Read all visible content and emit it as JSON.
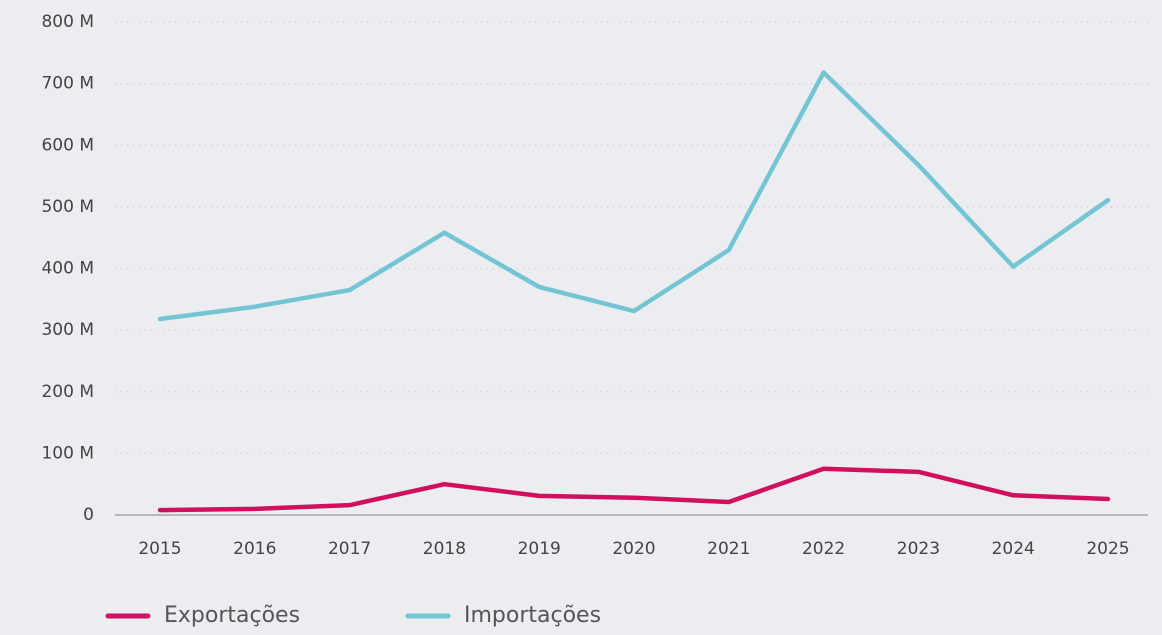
{
  "chart_data": {
    "type": "line",
    "categories": [
      "2015",
      "2016",
      "2017",
      "2018",
      "2019",
      "2020",
      "2021",
      "2022",
      "2023",
      "2024",
      "2025"
    ],
    "series": [
      {
        "name": "Exportações",
        "color": "#d0105f",
        "values": [
          8000000,
          10000000,
          16000000,
          50000000,
          31000000,
          28000000,
          21000000,
          75000000,
          70000000,
          32000000,
          26000000
        ]
      },
      {
        "name": "Importações",
        "color": "#74c5d3",
        "values": [
          318000000,
          338000000,
          365000000,
          458000000,
          370000000,
          331000000,
          430000000,
          718000000,
          568000000,
          403000000,
          511000000
        ]
      }
    ],
    "ylim": [
      0,
      800000000
    ],
    "yticks": [
      0,
      {
        "value": 100000000,
        "label": "100 M"
      },
      {
        "value": 200000000,
        "label": "200 M"
      },
      {
        "value": 300000000,
        "label": "300 M"
      },
      {
        "value": 400000000,
        "label": "400 M"
      },
      {
        "value": 500000000,
        "label": "500 M"
      },
      {
        "value": 600000000,
        "label": "600 M"
      },
      {
        "value": 700000000,
        "label": "700 M"
      },
      {
        "value": 800000000,
        "label": "800 M"
      }
    ],
    "grid": true,
    "legend": "bottom-left"
  }
}
